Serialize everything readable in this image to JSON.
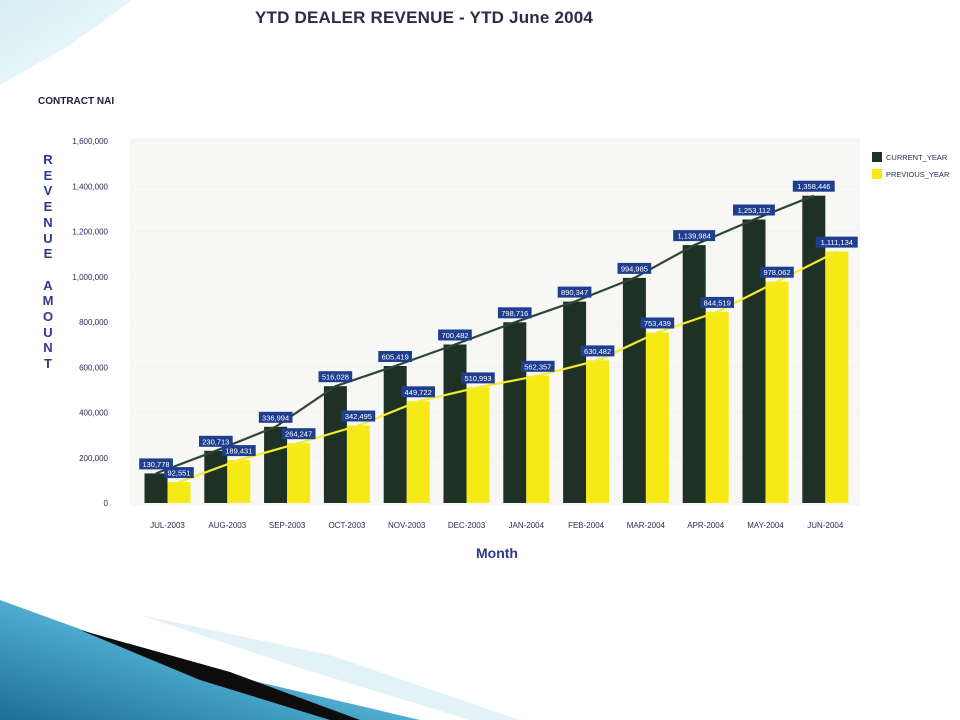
{
  "slide": {
    "contract_label": "CONTRACT NAI"
  },
  "colors": {
    "current": "#1e3124",
    "previous": "#f5ea15",
    "line_current": "#2f4636",
    "line_previous": "#f3ec2e",
    "label_bg": "#1f3f8e"
  },
  "chart_data": {
    "type": "bar",
    "title": "YTD DEALER REVENUE - YTD June 2004",
    "xlabel": "Month",
    "ylabel": "REVENUE AMOUNT",
    "ylim": [
      0,
      1600000
    ],
    "yticks": [
      "0",
      "200,000",
      "400,000",
      "600,000",
      "800,000",
      "1,000,000",
      "1,200,000",
      "1,400,000",
      "1,600,000"
    ],
    "categories": [
      "JUL-2003",
      "AUG-2003",
      "SEP-2003",
      "OCT-2003",
      "NOV-2003",
      "DEC-2003",
      "JAN-2004",
      "FEB-2004",
      "MAR-2004",
      "APR-2004",
      "MAY-2004",
      "JUN-2004"
    ],
    "series": [
      {
        "name": "CURRENT_YEAR",
        "values": [
          130778,
          230713,
          336994,
          516028,
          605419,
          700482,
          798716,
          890347,
          994985,
          1139984,
          1253112,
          1358446
        ],
        "labels": [
          "130,778",
          "230,713",
          "336,994",
          "516,028",
          "605,419",
          "700,482",
          "798,716",
          "890,347",
          "994,985",
          "1,139,984",
          "1,253,112",
          "1,358,446"
        ]
      },
      {
        "name": "PREVIOUS_YEAR",
        "values": [
          92551,
          189431,
          264247,
          342495,
          449722,
          510993,
          562357,
          630482,
          753439,
          844519,
          978062,
          1111134
        ],
        "labels": [
          "92,551",
          "189,431",
          "264,247",
          "342,495",
          "449,722",
          "510,993",
          "562,357",
          "630,482",
          "753,439",
          "844,519",
          "978,062",
          "1,111,134"
        ]
      }
    ],
    "legend": "top-right",
    "grid": true
  }
}
